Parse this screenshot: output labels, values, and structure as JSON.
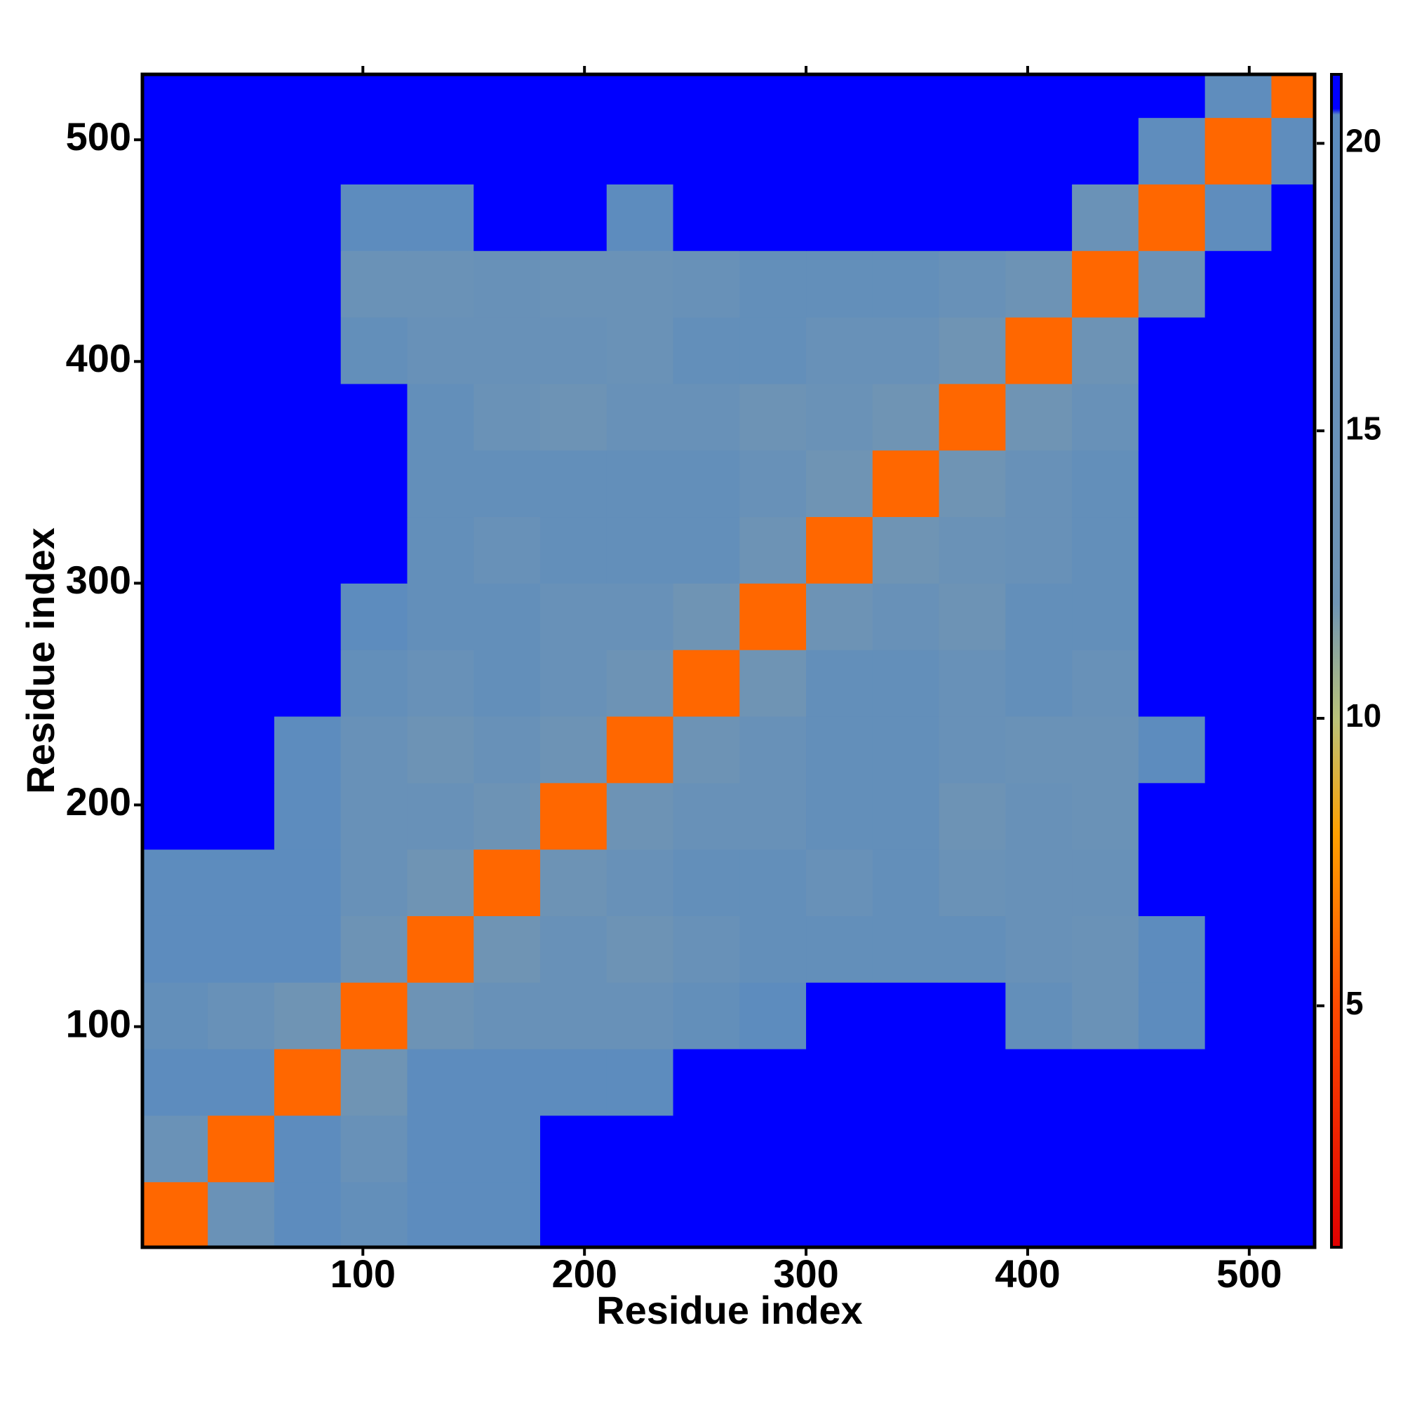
{
  "chart_data": {
    "type": "heatmap",
    "xlabel": "Residue index",
    "ylabel": "Residue index",
    "x_edges": [
      0.5,
      30,
      60,
      90,
      120,
      150,
      180,
      210,
      240,
      270,
      300,
      330,
      360,
      390,
      420,
      450,
      480,
      510,
      529.5
    ],
    "y_edges": [
      0.5,
      30,
      60,
      90,
      120,
      150,
      180,
      210,
      240,
      270,
      300,
      330,
      360,
      390,
      420,
      450,
      480,
      510,
      529.5
    ],
    "xlim": [
      0.5,
      529.5
    ],
    "ylim": [
      0.5,
      529.5
    ],
    "xticks": [
      100,
      200,
      300,
      400,
      500
    ],
    "yticks": [
      100,
      200,
      300,
      400,
      500
    ],
    "clim": [
      0.8,
      21.2
    ],
    "cticks": [
      5,
      10,
      15,
      20
    ],
    "colorscale": [
      [
        0.8,
        "#e00000"
      ],
      [
        5,
        "#ff4a00"
      ],
      [
        8,
        "#ffa000"
      ],
      [
        10,
        "#b9c27a"
      ],
      [
        12,
        "#6f94b4"
      ],
      [
        20.5,
        "#5b8bbf"
      ],
      [
        20.6,
        "#0000ff"
      ],
      [
        21.2,
        "#0000ff"
      ]
    ],
    "z": [
      [
        6,
        14,
        19.5,
        17,
        19.5,
        19.5,
        21,
        21,
        21,
        21,
        21,
        21,
        21,
        21,
        21,
        21,
        21,
        21
      ],
      [
        14,
        6,
        19.5,
        15,
        19.5,
        19.5,
        21,
        21,
        21,
        21,
        21,
        21,
        21,
        21,
        21,
        21,
        21,
        21
      ],
      [
        19.5,
        19.5,
        6,
        12,
        19.5,
        19.5,
        19.5,
        19.5,
        21,
        21,
        21,
        21,
        21,
        21,
        21,
        21,
        21,
        21
      ],
      [
        17,
        15,
        12,
        6,
        13,
        15,
        15,
        15,
        17,
        19.5,
        21,
        21,
        21,
        17,
        14,
        19.5,
        21,
        21
      ],
      [
        19.5,
        19.5,
        19.5,
        13,
        6,
        12,
        15,
        13,
        15,
        17,
        17,
        17,
        17,
        15,
        14,
        19.5,
        21,
        21
      ],
      [
        19.5,
        19.5,
        19.5,
        15,
        12,
        6,
        13,
        15,
        17,
        17,
        15,
        17,
        14,
        15,
        15,
        21,
        21,
        21
      ],
      [
        21,
        21,
        19.5,
        15,
        15,
        13,
        6,
        13,
        15,
        15,
        17,
        17,
        13,
        15,
        14,
        21,
        21,
        21
      ],
      [
        21,
        21,
        19.5,
        15,
        13,
        15,
        13,
        6,
        13,
        15,
        17,
        17,
        15,
        14,
        14,
        19.5,
        21,
        21
      ],
      [
        21,
        21,
        21,
        17,
        15,
        17,
        15,
        13,
        6,
        12,
        17,
        17,
        15,
        17,
        15,
        21,
        21,
        21
      ],
      [
        21,
        21,
        21,
        19.5,
        17,
        17,
        15,
        15,
        12,
        6,
        13,
        15,
        13,
        17,
        17,
        21,
        21,
        21
      ],
      [
        21,
        21,
        21,
        21,
        17,
        15,
        17,
        17,
        17,
        13,
        6,
        12,
        14,
        15,
        17,
        21,
        21,
        21
      ],
      [
        21,
        21,
        21,
        21,
        17,
        17,
        17,
        17,
        17,
        15,
        12,
        6,
        12,
        15,
        17,
        21,
        21,
        21
      ],
      [
        21,
        21,
        21,
        21,
        17,
        14,
        13,
        15,
        15,
        13,
        14,
        12,
        6,
        12,
        15,
        21,
        21,
        21
      ],
      [
        21,
        21,
        21,
        17,
        15,
        15,
        15,
        14,
        17,
        17,
        15,
        15,
        12,
        6,
        13,
        21,
        21,
        21
      ],
      [
        21,
        21,
        21,
        14,
        14,
        15,
        14,
        14,
        15,
        17,
        17,
        17,
        15,
        13,
        6,
        14,
        21,
        21
      ],
      [
        21,
        21,
        21,
        19.5,
        19.5,
        21,
        21,
        19.5,
        21,
        21,
        21,
        21,
        21,
        21,
        14,
        6,
        19,
        21
      ],
      [
        21,
        21,
        21,
        21,
        21,
        21,
        21,
        21,
        21,
        21,
        21,
        21,
        21,
        21,
        21,
        19,
        6,
        19
      ],
      [
        21,
        21,
        21,
        21,
        21,
        21,
        21,
        21,
        21,
        21,
        21,
        21,
        21,
        21,
        21,
        21,
        19,
        6
      ]
    ]
  }
}
